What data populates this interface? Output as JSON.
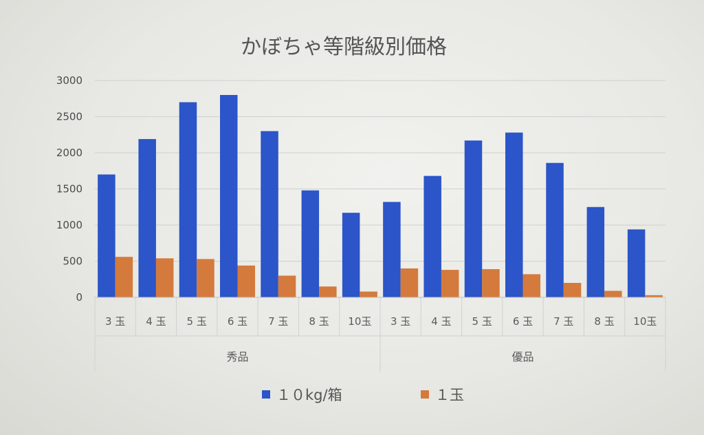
{
  "chart_data": {
    "type": "bar",
    "title": "かぼちゃ等階級別価格",
    "groups": [
      {
        "name": "秀品",
        "categories": [
          "3玉",
          "4玉",
          "5玉",
          "6玉",
          "7玉",
          "8玉",
          "10玉"
        ]
      },
      {
        "name": "優品",
        "categories": [
          "3玉",
          "4玉",
          "5玉",
          "6玉",
          "7玉",
          "8玉",
          "10玉"
        ]
      }
    ],
    "categories": [
      "3玉",
      "4玉",
      "5玉",
      "6玉",
      "7玉",
      "8玉",
      "10玉",
      "3玉",
      "4玉",
      "5玉",
      "6玉",
      "7玉",
      "8玉",
      "10玉"
    ],
    "tick_labels": [
      "3 玉",
      "4 玉",
      "5 玉",
      "6 玉",
      "7 玉",
      "8 玉",
      "10玉",
      "3 玉",
      "4 玉",
      "5 玉",
      "6 玉",
      "7 玉",
      "8 玉",
      "10玉"
    ],
    "series": [
      {
        "name": "１０kg/箱",
        "color": "#2b55c8",
        "values": [
          1700,
          2190,
          2700,
          2800,
          2300,
          1480,
          1170,
          1320,
          1680,
          2170,
          2280,
          1860,
          1250,
          940
        ]
      },
      {
        "name": "１玉",
        "color": "#d47a3c",
        "values": [
          560,
          540,
          530,
          440,
          300,
          150,
          80,
          400,
          380,
          390,
          320,
          200,
          90,
          30
        ]
      }
    ],
    "ylim": [
      0,
      3000
    ],
    "yticks": [
      0,
      500,
      1000,
      1500,
      2000,
      2500,
      3000
    ],
    "xlabel": "",
    "ylabel": "",
    "grid": true,
    "legend": "bottom"
  }
}
